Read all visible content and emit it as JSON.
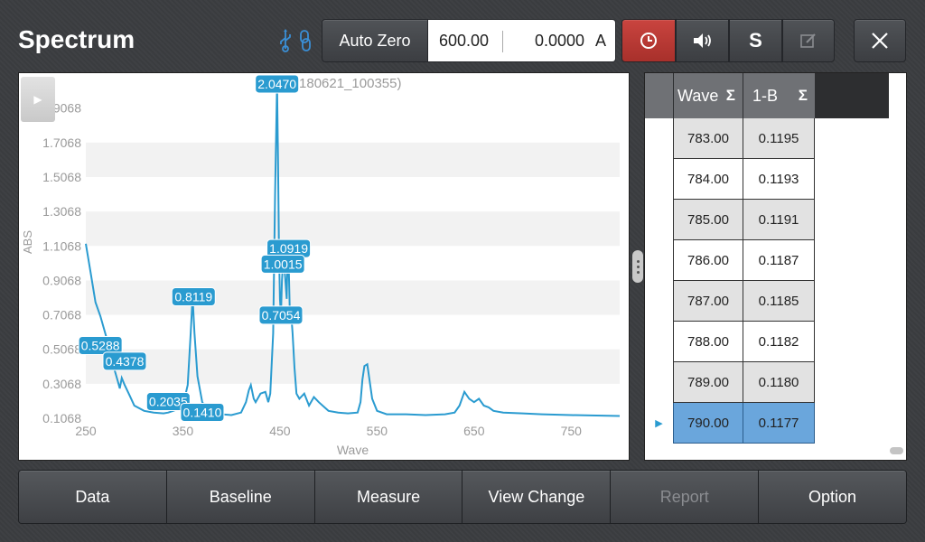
{
  "header": {
    "title": "Spectrum",
    "usb_icon": "usb-icon",
    "link_icon": "link-icon",
    "auto_zero_label": "Auto Zero",
    "wavelength_value": "600.00",
    "absorbance_value": "0.0000",
    "absorbance_unit": "A",
    "timer_icon": "clock-icon",
    "sound_icon": "speaker-icon",
    "s_label": "S",
    "edit_icon": "edit-icon",
    "close_icon": "close-icon",
    "timer_color": "#b83a35"
  },
  "chart_data": {
    "type": "line",
    "title": "Spt(180621_100355)",
    "xlabel": "Wave",
    "ylabel": "ABS",
    "xlim": [
      250,
      800
    ],
    "ylim": [
      0.1068,
      2.0468
    ],
    "xticks": [
      "250",
      "350",
      "450",
      "550",
      "650",
      "750"
    ],
    "yticks": [
      "0.1068",
      "0.3068",
      "0.5068",
      "0.7068",
      "0.9068",
      "1.1068",
      "1.3068",
      "1.5068",
      "1.7068",
      "1.9068"
    ],
    "line_color": "#2a9bd0",
    "series": [
      {
        "x": [
          250,
          255,
          260,
          265,
          270,
          275,
          280,
          283,
          285,
          287,
          290,
          295,
          300,
          310,
          320,
          330,
          335,
          340,
          345,
          350,
          355,
          358,
          360,
          362,
          365,
          370,
          375,
          380,
          390,
          400,
          410,
          415,
          418,
          420,
          423,
          425,
          430,
          435,
          438,
          440,
          443,
          445,
          447,
          448,
          449,
          450,
          451,
          452,
          453,
          455,
          457,
          458,
          459,
          460,
          462,
          463,
          465,
          467,
          470,
          475,
          480,
          485,
          490,
          500,
          510,
          520,
          530,
          533,
          535,
          537,
          540,
          545,
          550,
          560,
          570,
          580,
          600,
          620,
          630,
          635,
          640,
          645,
          650,
          655,
          660,
          665,
          670,
          680,
          700,
          720,
          750,
          800
        ],
        "y": [
          1.12,
          0.95,
          0.78,
          0.7,
          0.6,
          0.5,
          0.38,
          0.32,
          0.28,
          0.34,
          0.3,
          0.24,
          0.18,
          0.15,
          0.14,
          0.135,
          0.14,
          0.15,
          0.16,
          0.18,
          0.3,
          0.6,
          0.812,
          0.6,
          0.35,
          0.2,
          0.16,
          0.14,
          0.13,
          0.125,
          0.14,
          0.2,
          0.27,
          0.3,
          0.22,
          0.2,
          0.25,
          0.26,
          0.2,
          0.25,
          0.6,
          1.4,
          2.047,
          1.6,
          1.1,
          0.8,
          0.7,
          0.9,
          1.0,
          0.95,
          0.8,
          1.09,
          1.0,
          0.75,
          0.68,
          0.6,
          0.4,
          0.25,
          0.22,
          0.25,
          0.18,
          0.23,
          0.2,
          0.15,
          0.14,
          0.135,
          0.14,
          0.2,
          0.33,
          0.41,
          0.42,
          0.22,
          0.15,
          0.13,
          0.13,
          0.13,
          0.125,
          0.13,
          0.14,
          0.18,
          0.26,
          0.22,
          0.2,
          0.22,
          0.18,
          0.17,
          0.15,
          0.14,
          0.135,
          0.13,
          0.125,
          0.12
        ]
      }
    ],
    "peak_labels": [
      {
        "x": 265,
        "y": 0.5288,
        "text": "0.5288"
      },
      {
        "x": 290,
        "y": 0.4378,
        "text": "0.4378"
      },
      {
        "x": 335,
        "y": 0.2035,
        "text": "0.2035"
      },
      {
        "x": 370,
        "y": 0.141,
        "text": "0.1410"
      },
      {
        "x": 361,
        "y": 0.8119,
        "text": "0.8119"
      },
      {
        "x": 447,
        "y": 2.047,
        "text": "2.0470"
      },
      {
        "x": 459,
        "y": 1.0919,
        "text": "1.0919"
      },
      {
        "x": 453,
        "y": 1.0015,
        "text": "1.0015"
      },
      {
        "x": 451,
        "y": 0.7054,
        "text": "0.7054"
      }
    ]
  },
  "table": {
    "columns": [
      "Wave",
      "1-B"
    ],
    "sigma": "Σ",
    "rows": [
      {
        "wave": "783.00",
        "value": "0.1195"
      },
      {
        "wave": "784.00",
        "value": "0.1193"
      },
      {
        "wave": "785.00",
        "value": "0.1191"
      },
      {
        "wave": "786.00",
        "value": "0.1187"
      },
      {
        "wave": "787.00",
        "value": "0.1185"
      },
      {
        "wave": "788.00",
        "value": "0.1182"
      },
      {
        "wave": "789.00",
        "value": "0.1180"
      },
      {
        "wave": "790.00",
        "value": "0.1177"
      }
    ],
    "selected_row": 7
  },
  "bottom": {
    "data": "Data",
    "baseline": "Baseline",
    "measure": "Measure",
    "view_change": "View Change",
    "report": "Report",
    "option": "Option"
  }
}
